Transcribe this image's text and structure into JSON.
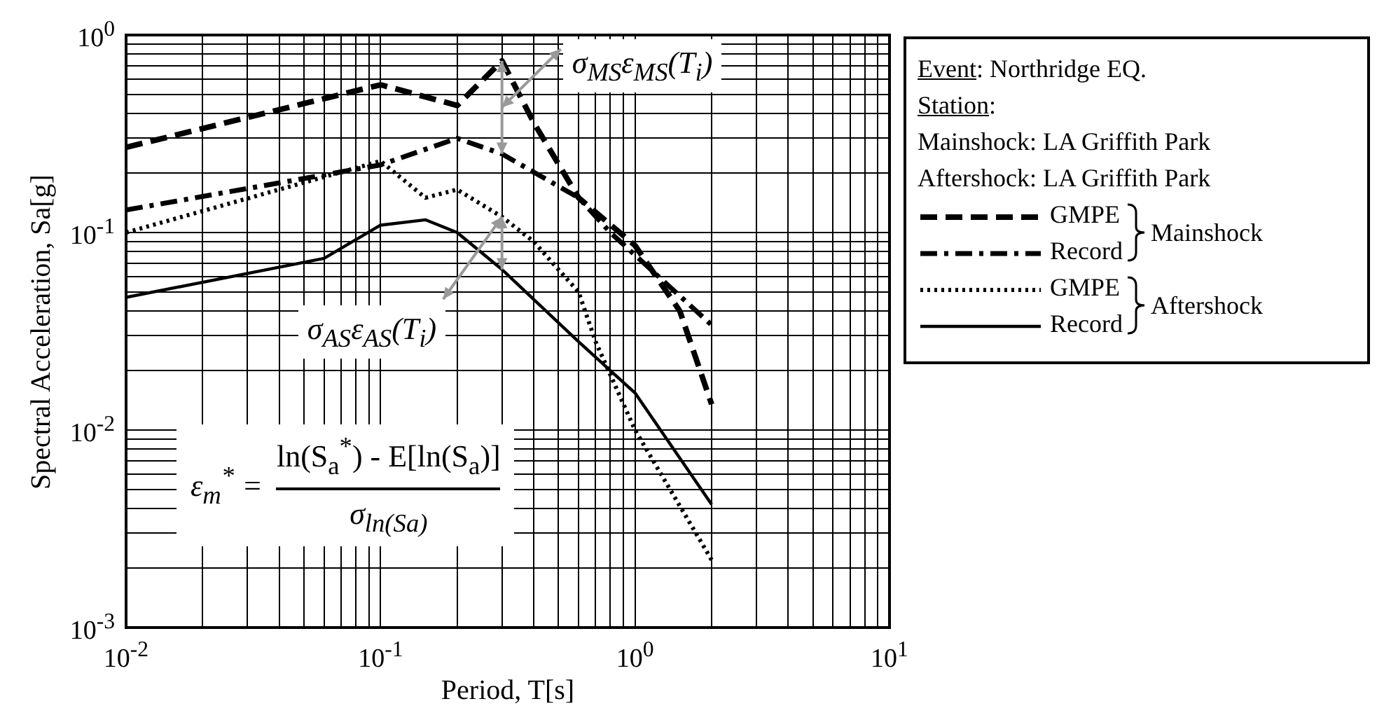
{
  "chart_data": {
    "type": "line",
    "xlabel": "Period, T[s]",
    "ylabel": "Spectral Acceleration, Sa[g]",
    "log": "xy",
    "grid": true,
    "legend": "right",
    "xlim": [
      0.01,
      10
    ],
    "ylim": [
      0.001,
      1
    ],
    "xticks": [
      {
        "value": 0.01,
        "label": "10$^{-2}$"
      },
      {
        "value": 0.1,
        "label": "10$^{-1}$"
      },
      {
        "value": 1,
        "label": "10$^{0}$"
      },
      {
        "value": 10,
        "label": "10$^{1}$"
      }
    ],
    "yticks": [
      {
        "value": 0.001,
        "label": "10$^{-3}$"
      },
      {
        "value": 0.01,
        "label": "10$^{-2}$"
      },
      {
        "value": 0.1,
        "label": "10$^{-1}$"
      },
      {
        "value": 1,
        "label": "10$^{0}$"
      }
    ],
    "series": [
      {
        "name": "GMPE",
        "color": "#000000",
        "line_style": "dashed",
        "x": [
          0.01,
          0.1,
          0.2,
          0.3,
          0.4,
          0.6,
          1,
          1.5,
          2
        ],
        "values": [
          0.27,
          0.56,
          0.44,
          0.74,
          0.36,
          0.15,
          0.086,
          0.04,
          0.0135
        ]
      },
      {
        "name": "Record",
        "color": "#000000",
        "line_style": "dashdot",
        "x": [
          0.01,
          0.1,
          0.2,
          0.3,
          0.6,
          0.8,
          2
        ],
        "values": [
          0.13,
          0.22,
          0.3,
          0.25,
          0.15,
          0.1,
          0.034
        ]
      },
      {
        "name": "GMPE",
        "color": "#000000",
        "line_style": "dotted",
        "x": [
          0.01,
          0.1,
          0.15,
          0.2,
          0.3,
          0.4,
          0.5,
          0.6,
          0.7,
          1,
          2
        ],
        "values": [
          0.1,
          0.23,
          0.15,
          0.165,
          0.12,
          0.09,
          0.065,
          0.05,
          0.028,
          0.01,
          0.0022
        ]
      },
      {
        "name": "Record",
        "color": "#000000",
        "line_style": "solid",
        "x": [
          0.01,
          0.06,
          0.1,
          0.15,
          0.2,
          0.3,
          0.6,
          1,
          2
        ],
        "values": [
          0.047,
          0.074,
          0.109,
          0.116,
          0.1,
          0.065,
          0.028,
          0.0154,
          0.0042
        ]
      }
    ],
    "annotations": [
      "Event: Northridge EQ.",
      "Station:",
      "Mainshock: LA Griffith Park",
      "Aftershock: LA Griffith Park",
      "Mainshock",
      "Aftershock",
      {
        "text": "σ$_{MS}$ε$_{MS}$(T$_{i}$)",
        "x": 0.3,
        "y": 0.74
      },
      {
        "text": "σ$_{AS}$ε$_{AS}$(T$_{i}$)",
        "x": 0.3,
        "y": 0.12
      },
      "ε$_{m}$$^{*}$ =",
      "ln(S$_{a}$$^{*}$) - E[ln(S$_{a}$)]",
      "σ$_{ln(Sa)}$"
    ]
  }
}
